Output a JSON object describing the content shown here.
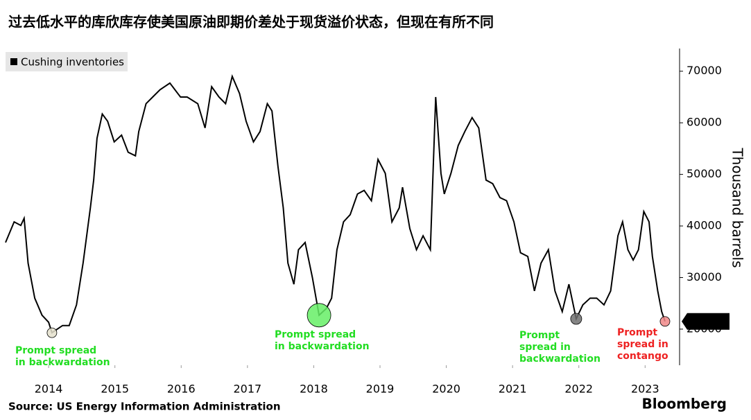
{
  "chart_data": {
    "type": "line",
    "title": "过去低水平的库欣库存使美国原油即期价差处于现货溢价状态，但现在有所不同",
    "y_label": "Thousand barrels",
    "source": "Source: US Energy Information Administration",
    "logo": "Bloomberg",
    "legend_position": "upper-left",
    "xlim": [
      2013.35,
      2023.52
    ],
    "xticks": [
      2014,
      2015,
      2016,
      2017,
      2018,
      2019,
      2020,
      2021,
      2022,
      2023
    ],
    "ylim": [
      13000,
      74400
    ],
    "yticks": [
      20000,
      30000,
      40000,
      50000,
      60000,
      70000
    ],
    "x": [
      2013.35,
      2013.48,
      2013.58,
      2013.63,
      2013.69,
      2013.79,
      2013.9,
      2014,
      2014.05,
      2014.21,
      2014.31,
      2014.42,
      2014.52,
      2014.63,
      2014.68,
      2014.73,
      2014.81,
      2014.89,
      2014.99,
      2015.1,
      2015.2,
      2015.31,
      2015.36,
      2015.47,
      2015.57,
      2015.68,
      2015.83,
      2015.99,
      2016.09,
      2016.25,
      2016.36,
      2016.46,
      2016.57,
      2016.67,
      2016.77,
      2016.88,
      2016.98,
      2017.09,
      2017.19,
      2017.3,
      2017.37,
      2017.46,
      2017.54,
      2017.61,
      2017.7,
      2017.77,
      2017.87,
      2017.98,
      2018.08,
      2018.19,
      2018.27,
      2018.35,
      2018.45,
      2018.55,
      2018.66,
      2018.76,
      2018.87,
      2018.97,
      2019.08,
      2019.18,
      2019.29,
      2019.34,
      2019.45,
      2019.55,
      2019.65,
      2019.76,
      2019.84,
      2019.92,
      2019.97,
      2020.07,
      2020.18,
      2020.28,
      2020.39,
      2020.49,
      2020.6,
      2020.7,
      2020.81,
      2020.91,
      2021.02,
      2021.12,
      2021.23,
      2021.33,
      2021.43,
      2021.54,
      2021.64,
      2021.75,
      2021.85,
      2021.96,
      2022.06,
      2022.17,
      2022.27,
      2022.38,
      2022.48,
      2022.59,
      2022.66,
      2022.74,
      2022.82,
      2022.9,
      2022.98,
      2023.06,
      2023.11,
      2023.19,
      2023.25,
      2023.3
    ],
    "series": [
      {
        "name": "Cushing inventories",
        "color": "#000000",
        "values": [
          36800,
          40800,
          40100,
          41500,
          32800,
          26000,
          22700,
          21350,
          19300,
          20700,
          20700,
          24700,
          32800,
          43500,
          48900,
          57000,
          61700,
          60300,
          56300,
          57600,
          54300,
          53600,
          58300,
          63700,
          65000,
          66400,
          67700,
          65000,
          65000,
          63700,
          59000,
          67000,
          65000,
          63700,
          69000,
          65700,
          60300,
          56300,
          58300,
          63700,
          62300,
          51600,
          43500,
          32800,
          28700,
          35400,
          36800,
          30000,
          22700,
          24000,
          26000,
          35400,
          40800,
          42200,
          46200,
          46900,
          44900,
          52900,
          50200,
          40800,
          43500,
          47500,
          39500,
          35400,
          38100,
          35400,
          65000,
          50200,
          46200,
          50200,
          55600,
          58300,
          61000,
          59000,
          48900,
          48200,
          45500,
          44900,
          40800,
          34800,
          34100,
          27400,
          32800,
          35400,
          27400,
          23400,
          28700,
          22000,
          24700,
          26000,
          26000,
          24700,
          27400,
          38100,
          40800,
          35400,
          33400,
          35400,
          42800,
          40800,
          34100,
          27400,
          23400,
          21498
        ]
      }
    ],
    "annotations": [
      {
        "text": [
          "Prompt spread",
          "in backwardation"
        ],
        "x": 2014.05,
        "color": "#22dd22",
        "marker_color": "#e4e0cc"
      },
      {
        "text": [
          "Prompt spread",
          "in backwardation"
        ],
        "x": 2018.08,
        "color": "#22dd22",
        "marker_color": "#66ee66"
      },
      {
        "text": [
          "Prompt",
          "spread in",
          "backwardation"
        ],
        "x": 2021.96,
        "color": "#22dd22",
        "marker_color": "#707070"
      },
      {
        "text": [
          "Prompt",
          "spread in",
          "contango"
        ],
        "x": 2023.3,
        "color": "#ee2222",
        "marker_color": "#f08888"
      }
    ]
  }
}
